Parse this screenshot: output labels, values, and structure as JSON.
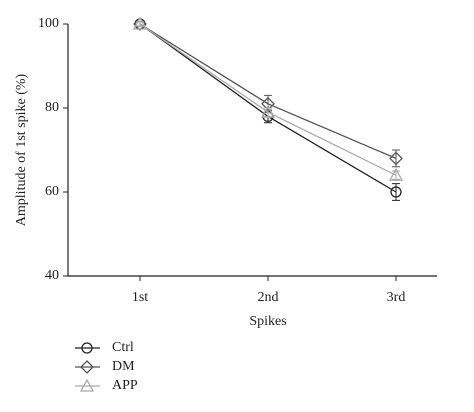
{
  "chart_data": {
    "type": "line",
    "xlabel": "Spikes",
    "ylabel": "Amplitude of 1st spike (%)",
    "categories": [
      "1st",
      "2nd",
      "3rd"
    ],
    "ylim": [
      40,
      100
    ],
    "yticks": [
      40,
      60,
      80,
      100
    ],
    "series": [
      {
        "name": "Ctrl",
        "color": "#222222",
        "marker": "circle",
        "values": [
          100,
          78,
          60
        ],
        "errors": [
          0.5,
          1.5,
          2
        ]
      },
      {
        "name": "DM",
        "color": "#555555",
        "marker": "diamond",
        "values": [
          100,
          81,
          68
        ],
        "errors": [
          0.5,
          2,
          2
        ]
      },
      {
        "name": "APP",
        "color": "#aaaaaa",
        "marker": "triangle",
        "values": [
          100,
          79,
          64
        ],
        "errors": [
          0.5,
          1,
          1
        ]
      }
    ]
  }
}
